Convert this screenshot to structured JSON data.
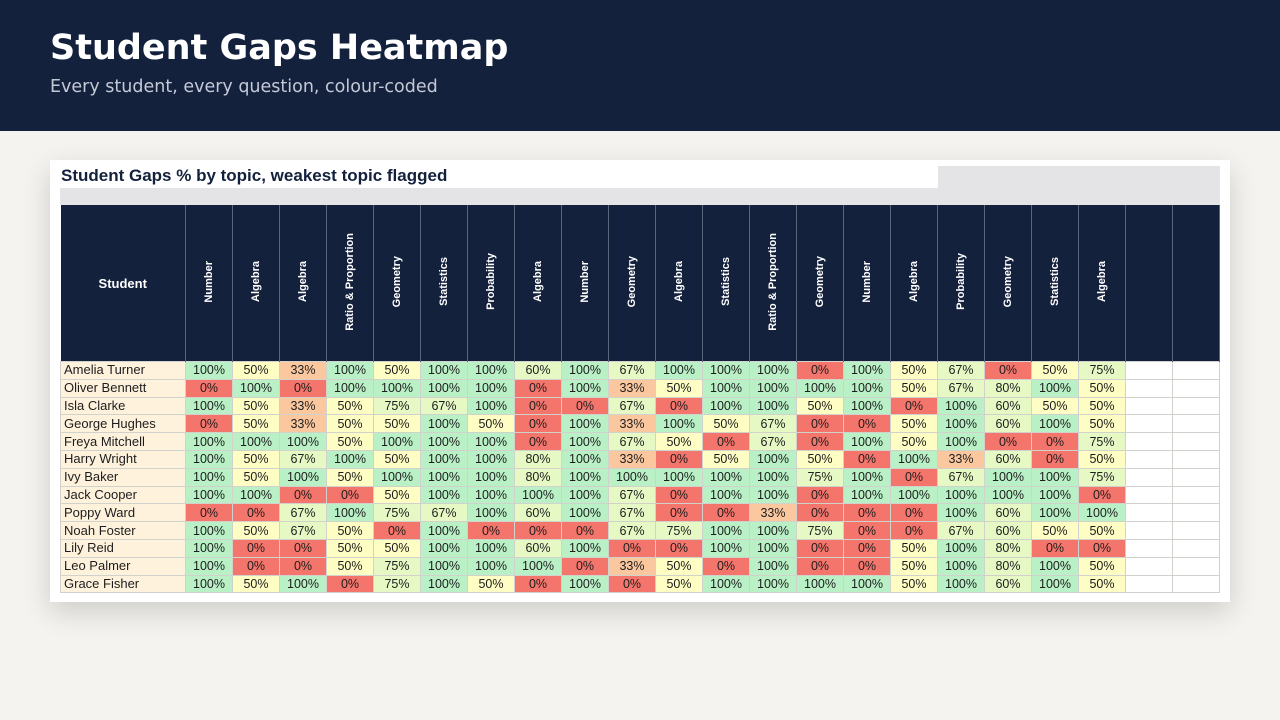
{
  "header": {
    "title": "Student Gaps Heatmap",
    "subtitle": "Every student, every question, colour-coded"
  },
  "sheet": {
    "title": "Student Gaps  % by topic, weakest topic flagged",
    "student_header": "Student",
    "topics": [
      "Number",
      "Algebra",
      "Algebra",
      "Ratio & Proportion",
      "Geometry",
      "Statistics",
      "Probability",
      "Algebra",
      "Number",
      "Geometry",
      "Algebra",
      "Statistics",
      "Ratio & Proportion",
      "Geometry",
      "Number",
      "Algebra",
      "Probability",
      "Geometry",
      "Statistics",
      "Algebra",
      "",
      ""
    ],
    "rows": [
      {
        "name": "Amelia Turner",
        "values": [
          "100%",
          "50%",
          "33%",
          "100%",
          "50%",
          "100%",
          "100%",
          "60%",
          "100%",
          "67%",
          "100%",
          "100%",
          "100%",
          "0%",
          "100%",
          "50%",
          "67%",
          "0%",
          "50%",
          "75%"
        ]
      },
      {
        "name": "Oliver Bennett",
        "values": [
          "0%",
          "100%",
          "0%",
          "100%",
          "100%",
          "100%",
          "100%",
          "0%",
          "100%",
          "33%",
          "50%",
          "100%",
          "100%",
          "100%",
          "100%",
          "50%",
          "67%",
          "80%",
          "100%",
          "50%"
        ]
      },
      {
        "name": "Isla Clarke",
        "values": [
          "100%",
          "50%",
          "33%",
          "50%",
          "75%",
          "67%",
          "100%",
          "0%",
          "0%",
          "67%",
          "0%",
          "100%",
          "100%",
          "50%",
          "100%",
          "0%",
          "100%",
          "60%",
          "50%",
          "50%"
        ]
      },
      {
        "name": "George Hughes",
        "values": [
          "0%",
          "50%",
          "33%",
          "50%",
          "50%",
          "100%",
          "50%",
          "0%",
          "100%",
          "33%",
          "100%",
          "50%",
          "67%",
          "0%",
          "0%",
          "50%",
          "100%",
          "60%",
          "100%",
          "50%"
        ]
      },
      {
        "name": "Freya Mitchell",
        "values": [
          "100%",
          "100%",
          "100%",
          "50%",
          "100%",
          "100%",
          "100%",
          "0%",
          "100%",
          "67%",
          "50%",
          "0%",
          "67%",
          "0%",
          "100%",
          "50%",
          "100%",
          "0%",
          "0%",
          "75%"
        ]
      },
      {
        "name": "Harry Wright",
        "values": [
          "100%",
          "50%",
          "67%",
          "100%",
          "50%",
          "100%",
          "100%",
          "80%",
          "100%",
          "33%",
          "0%",
          "50%",
          "100%",
          "50%",
          "0%",
          "100%",
          "33%",
          "60%",
          "0%",
          "50%"
        ]
      },
      {
        "name": "Ivy Baker",
        "values": [
          "100%",
          "50%",
          "100%",
          "50%",
          "100%",
          "100%",
          "100%",
          "80%",
          "100%",
          "100%",
          "100%",
          "100%",
          "100%",
          "75%",
          "100%",
          "0%",
          "67%",
          "100%",
          "100%",
          "75%"
        ]
      },
      {
        "name": "Jack Cooper",
        "values": [
          "100%",
          "100%",
          "0%",
          "0%",
          "50%",
          "100%",
          "100%",
          "100%",
          "100%",
          "67%",
          "0%",
          "100%",
          "100%",
          "0%",
          "100%",
          "100%",
          "100%",
          "100%",
          "100%",
          "0%"
        ]
      },
      {
        "name": "Poppy Ward",
        "values": [
          "0%",
          "0%",
          "67%",
          "100%",
          "75%",
          "67%",
          "100%",
          "60%",
          "100%",
          "67%",
          "0%",
          "0%",
          "33%",
          "0%",
          "0%",
          "0%",
          "100%",
          "60%",
          "100%",
          "100%"
        ]
      },
      {
        "name": "Noah Foster",
        "values": [
          "100%",
          "50%",
          "67%",
          "50%",
          "0%",
          "100%",
          "0%",
          "0%",
          "0%",
          "67%",
          "75%",
          "100%",
          "100%",
          "75%",
          "0%",
          "0%",
          "67%",
          "60%",
          "50%",
          "50%"
        ]
      },
      {
        "name": "Lily Reid",
        "values": [
          "100%",
          "0%",
          "0%",
          "50%",
          "50%",
          "100%",
          "100%",
          "60%",
          "100%",
          "0%",
          "0%",
          "100%",
          "100%",
          "0%",
          "0%",
          "50%",
          "100%",
          "80%",
          "0%",
          "0%"
        ]
      },
      {
        "name": "Leo Palmer",
        "values": [
          "100%",
          "0%",
          "0%",
          "50%",
          "75%",
          "100%",
          "100%",
          "100%",
          "0%",
          "33%",
          "50%",
          "0%",
          "100%",
          "0%",
          "0%",
          "50%",
          "100%",
          "80%",
          "100%",
          "50%"
        ]
      },
      {
        "name": "Grace Fisher",
        "values": [
          "100%",
          "50%",
          "100%",
          "0%",
          "75%",
          "100%",
          "50%",
          "0%",
          "100%",
          "0%",
          "50%",
          "100%",
          "100%",
          "100%",
          "100%",
          "50%",
          "100%",
          "60%",
          "100%",
          "50%"
        ]
      }
    ]
  },
  "colors": {
    "navy": "#14213d",
    "red": "#f4756b",
    "orange": "#fbc79f",
    "yellow": "#fefdc4",
    "lightgreen": "#e6f9c4",
    "green": "#b9f0c6",
    "name_bg": "#fff2dd"
  }
}
